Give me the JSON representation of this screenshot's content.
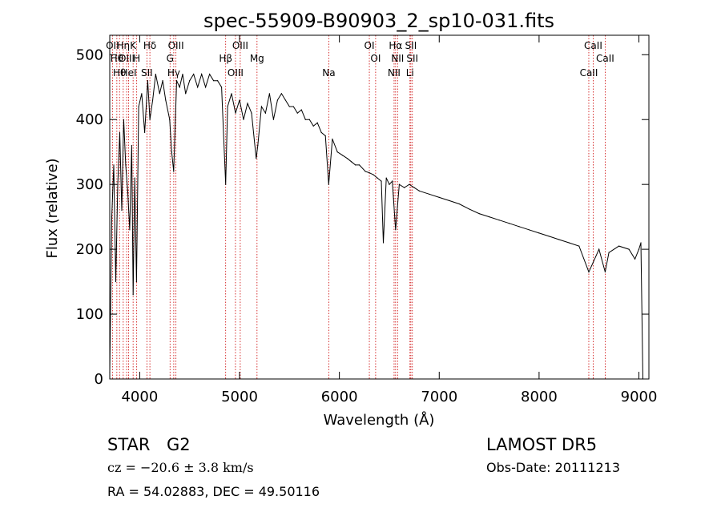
{
  "title": "spec-55909-B90903_2_sp10-031.fits",
  "info": {
    "object_class": "STAR",
    "subclass": "G2",
    "survey": "LAMOST  DR5",
    "cz": "cz = −20.6 ± 3.8 km/s",
    "obs_date": "Obs-Date: 20111213",
    "coords": "RA =  54.02883, DEC =  49.50116"
  },
  "chart_data": {
    "type": "line",
    "title": "spec-55909-B90903_2_sp10-031.fits",
    "xlabel": "Wavelength (Å)",
    "ylabel": "Flux (relative)",
    "xlim": [
      3700,
      9100
    ],
    "ylim": [
      0,
      530
    ],
    "x_ticks": [
      4000,
      5000,
      6000,
      7000,
      8000,
      9000
    ],
    "y_ticks": [
      0,
      100,
      200,
      300,
      400,
      500
    ],
    "grid": false,
    "line_color": "#000000",
    "marker_color": "#cc0000",
    "series": [
      {
        "x": [
          3700,
          3720,
          3740,
          3760,
          3780,
          3800,
          3820,
          3840,
          3860,
          3880,
          3900,
          3920,
          3934,
          3950,
          3968,
          3990,
          4020,
          4050,
          4080,
          4102,
          4130,
          4160,
          4200,
          4230,
          4260,
          4300,
          4320,
          4340,
          4370,
          4400,
          4430,
          4460,
          4500,
          4540,
          4580,
          4620,
          4660,
          4700,
          4740,
          4780,
          4820,
          4861,
          4880,
          4920,
          4960,
          5000,
          5040,
          5080,
          5120,
          5167,
          5183,
          5220,
          5260,
          5300,
          5340,
          5380,
          5420,
          5460,
          5500,
          5540,
          5580,
          5620,
          5660,
          5700,
          5740,
          5780,
          5820,
          5860,
          5893,
          5930,
          5980,
          6030,
          6080,
          6120,
          6160,
          6200,
          6260,
          6300,
          6340,
          6380,
          6420,
          6440,
          6470,
          6500,
          6530,
          6563,
          6600,
          6650,
          6700,
          6750,
          6800,
          6900,
          7000,
          7100,
          7200,
          7300,
          7400,
          7500,
          7600,
          7700,
          7800,
          7900,
          8000,
          8100,
          8200,
          8300,
          8400,
          8498,
          8542,
          8600,
          8662,
          8700,
          8800,
          8900,
          8960,
          9000,
          9020,
          9040
        ],
        "y": [
          10,
          250,
          330,
          150,
          300,
          380,
          260,
          400,
          330,
          290,
          230,
          360,
          130,
          310,
          150,
          420,
          440,
          380,
          460,
          400,
          430,
          470,
          440,
          460,
          430,
          400,
          350,
          320,
          460,
          450,
          470,
          440,
          460,
          470,
          450,
          470,
          450,
          470,
          460,
          460,
          450,
          300,
          420,
          440,
          410,
          430,
          400,
          425,
          410,
          340,
          360,
          420,
          410,
          440,
          400,
          430,
          440,
          430,
          420,
          420,
          410,
          415,
          400,
          400,
          390,
          395,
          380,
          375,
          300,
          370,
          350,
          345,
          340,
          335,
          330,
          330,
          320,
          318,
          315,
          310,
          305,
          210,
          310,
          300,
          305,
          230,
          300,
          295,
          300,
          295,
          290,
          285,
          280,
          275,
          270,
          262,
          255,
          250,
          245,
          240,
          235,
          230,
          225,
          220,
          215,
          210,
          205,
          165,
          180,
          200,
          165,
          195,
          205,
          200,
          185,
          200,
          210,
          0
        ]
      }
    ],
    "lines": [
      {
        "wl": 3727,
        "label": "OII"
      },
      {
        "wl": 3771,
        "label": "Hθ"
      },
      {
        "wl": 3798,
        "label": "Hθ"
      },
      {
        "wl": 3835,
        "label": "Hη"
      },
      {
        "wl": 3869,
        "label": "OIII"
      },
      {
        "wl": 3889,
        "label": "HeI"
      },
      {
        "wl": 3934,
        "label": "K"
      },
      {
        "wl": 3970,
        "label": "H"
      },
      {
        "wl": 4072,
        "label": "SII"
      },
      {
        "wl": 4102,
        "label": "Hδ"
      },
      {
        "wl": 4304,
        "label": "G"
      },
      {
        "wl": 4341,
        "label": "Hγ"
      },
      {
        "wl": 4363,
        "label": "OIII"
      },
      {
        "wl": 4861,
        "label": "Hβ"
      },
      {
        "wl": 4959,
        "label": "OIII"
      },
      {
        "wl": 5007,
        "label": "OIII"
      },
      {
        "wl": 5175,
        "label": "Mg"
      },
      {
        "wl": 5894,
        "label": "Na"
      },
      {
        "wl": 6300,
        "label": "OI"
      },
      {
        "wl": 6363,
        "label": "OI"
      },
      {
        "wl": 6548,
        "label": "NII"
      },
      {
        "wl": 6563,
        "label": "Hα"
      },
      {
        "wl": 6583,
        "label": "NII"
      },
      {
        "wl": 6707,
        "label": "Li"
      },
      {
        "wl": 6716,
        "label": "SII"
      },
      {
        "wl": 6731,
        "label": "SII"
      },
      {
        "wl": 8498,
        "label": "CaII"
      },
      {
        "wl": 8542,
        "label": "CaII"
      },
      {
        "wl": 8662,
        "label": "CaII"
      }
    ]
  }
}
